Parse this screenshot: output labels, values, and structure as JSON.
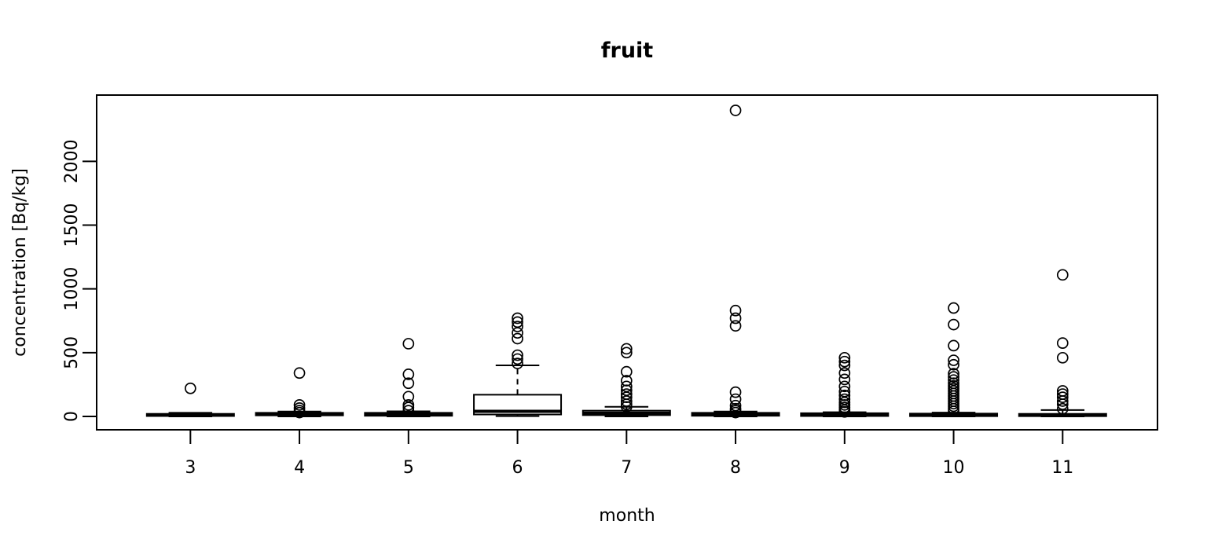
{
  "chart_data": {
    "type": "boxplot",
    "title": "fruit",
    "xlabel": "month",
    "ylabel": "concentration [Bq/kg]",
    "grid": false,
    "legend": "none",
    "yticks": [
      0,
      500,
      1000,
      1500,
      2000
    ],
    "ylim": [
      -105,
      2520
    ],
    "xlim": [
      2.14,
      11.87
    ],
    "box_width": 0.8,
    "cap_width": 0.4,
    "ink_color": "#000000",
    "background_color": "#ffffff",
    "boxes": [
      {
        "x": 3,
        "label": "3",
        "q1": 3,
        "median": 12,
        "q3": 20,
        "whisker_low": 0,
        "whisker_high": 28,
        "outliers": [
          220
        ]
      },
      {
        "x": 4,
        "label": "4",
        "q1": 8,
        "median": 18,
        "q3": 28,
        "whisker_low": 0,
        "whisker_high": 38,
        "outliers": [
          340,
          90,
          65,
          45,
          30
        ]
      },
      {
        "x": 5,
        "label": "5",
        "q1": 5,
        "median": 16,
        "q3": 28,
        "whisker_low": 0,
        "whisker_high": 40,
        "outliers": [
          570,
          330,
          260,
          155,
          90,
          70,
          45
        ]
      },
      {
        "x": 6,
        "label": "6",
        "q1": 15,
        "median": 40,
        "q3": 170,
        "whisker_low": 2,
        "whisker_high": 400,
        "outliers": [
          770,
          740,
          705,
          655,
          610,
          480,
          450,
          415
        ]
      },
      {
        "x": 7,
        "label": "7",
        "q1": 10,
        "median": 25,
        "q3": 45,
        "whisker_low": 0,
        "whisker_high": 75,
        "outliers": [
          530,
          500,
          350,
          280,
          235,
          205,
          175,
          150,
          120,
          95,
          75
        ]
      },
      {
        "x": 8,
        "label": "8",
        "q1": 5,
        "median": 15,
        "q3": 28,
        "whisker_low": 0,
        "whisker_high": 38,
        "outliers": [
          2400,
          830,
          770,
          710,
          190,
          135,
          85,
          60,
          45,
          30
        ]
      },
      {
        "x": 9,
        "label": "9",
        "q1": 3,
        "median": 13,
        "q3": 25,
        "whisker_low": 0,
        "whisker_high": 33,
        "outliers": [
          460,
          430,
          400,
          340,
          290,
          235,
          195,
          165,
          135,
          110,
          90,
          70,
          50,
          35
        ]
      },
      {
        "x": 10,
        "label": "10",
        "q1": 2,
        "median": 11,
        "q3": 22,
        "whisker_low": 0,
        "whisker_high": 30,
        "outliers": [
          850,
          720,
          555,
          440,
          405,
          335,
          310,
          285,
          260,
          240,
          220,
          200,
          180,
          160,
          140,
          120,
          100,
          80,
          60,
          40
        ]
      },
      {
        "x": 11,
        "label": "11",
        "q1": 2,
        "median": 11,
        "q3": 20,
        "whisker_low": 0,
        "whisker_high": 50,
        "outliers": [
          1110,
          575,
          460,
          200,
          175,
          150,
          120,
          95,
          60
        ]
      }
    ]
  }
}
